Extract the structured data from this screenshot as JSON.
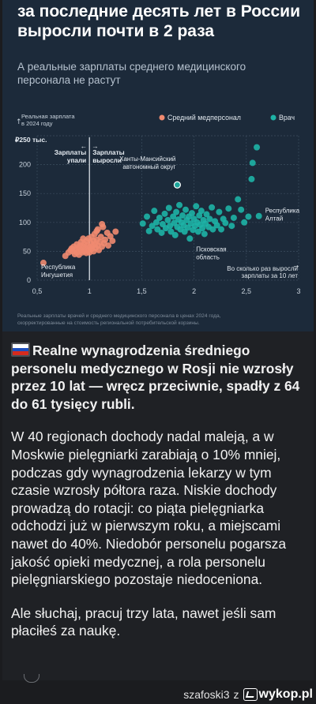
{
  "infographic": {
    "title_lines": [
      "за последние десять лет в России",
      "выросли почти в 2 раза"
    ],
    "subtitle_lines": [
      "А реальные зарплаты среднего медицинского",
      "персонала не растут"
    ],
    "caption_lines": [
      "Реальные зарплаты врачей и среднего медицинского персонала в ценах 2024 года,",
      "скорректированные на стоимость региональной потребительской корзины."
    ]
  },
  "chart_data": {
    "type": "scatter",
    "title": "",
    "ylabel_lines": [
      "Реальная зарплата",
      "в 2024 году"
    ],
    "y_unit": "₽250 тыс.",
    "xlabel_lines": [
      "Во сколько раз выросли",
      "зарплаты за 10 лет"
    ],
    "x_ticks": [
      "0,5",
      "1",
      "1,5",
      "2",
      "2,5",
      "3"
    ],
    "y_ticks": [
      "0",
      "50",
      "100",
      "150",
      "200"
    ],
    "xlim": [
      0.5,
      3
    ],
    "ylim": [
      0,
      250
    ],
    "legend_position": "top-right",
    "reference_line": {
      "x": 1,
      "left_label": [
        "Зарплаты",
        "упали"
      ],
      "right_label": [
        "Зарплаты",
        "выросли"
      ]
    },
    "series": [
      {
        "name": "Средний медперсонал",
        "color": "#f08a70",
        "points": [
          [
            0.56,
            30
          ],
          [
            0.77,
            42
          ],
          [
            0.8,
            48
          ],
          [
            0.82,
            52
          ],
          [
            0.83,
            55
          ],
          [
            0.84,
            50
          ],
          [
            0.85,
            58
          ],
          [
            0.86,
            45
          ],
          [
            0.87,
            53
          ],
          [
            0.88,
            62
          ],
          [
            0.88,
            48
          ],
          [
            0.9,
            56
          ],
          [
            0.9,
            44
          ],
          [
            0.91,
            60
          ],
          [
            0.92,
            52
          ],
          [
            0.92,
            66
          ],
          [
            0.93,
            48
          ],
          [
            0.94,
            58
          ],
          [
            0.95,
            63
          ],
          [
            0.95,
            50
          ],
          [
            0.96,
            55
          ],
          [
            0.97,
            68
          ],
          [
            0.97,
            47
          ],
          [
            0.98,
            60
          ],
          [
            0.99,
            52
          ],
          [
            0.99,
            72
          ],
          [
            1.0,
            57
          ],
          [
            1.0,
            48
          ],
          [
            1.01,
            65
          ],
          [
            1.02,
            54
          ],
          [
            1.02,
            75
          ],
          [
            1.03,
            59
          ],
          [
            1.04,
            50
          ],
          [
            1.04,
            68
          ],
          [
            1.05,
            62
          ],
          [
            1.05,
            80
          ],
          [
            1.06,
            56
          ],
          [
            1.07,
            70
          ],
          [
            1.08,
            60
          ],
          [
            1.08,
            88
          ],
          [
            1.09,
            52
          ],
          [
            1.1,
            66
          ],
          [
            1.11,
            75
          ],
          [
            1.12,
            58
          ],
          [
            1.13,
            92
          ],
          [
            1.14,
            64
          ],
          [
            1.15,
            70
          ],
          [
            1.17,
            82
          ],
          [
            1.18,
            60
          ],
          [
            1.2,
            76
          ],
          [
            1.22,
            68
          ],
          [
            1.25,
            84
          ],
          [
            1.12,
            97
          ],
          [
            1.07,
            85
          ],
          [
            0.94,
            72
          ]
        ]
      },
      {
        "name": "Врач",
        "color": "#1eb3a6",
        "points": [
          [
            1.51,
            98
          ],
          [
            1.55,
            110
          ],
          [
            1.57,
            85
          ],
          [
            1.6,
            94
          ],
          [
            1.62,
            120
          ],
          [
            1.64,
            100
          ],
          [
            1.65,
            88
          ],
          [
            1.67,
            108
          ],
          [
            1.69,
            82
          ],
          [
            1.7,
            97
          ],
          [
            1.72,
            115
          ],
          [
            1.73,
            90
          ],
          [
            1.75,
            104
          ],
          [
            1.76,
            125
          ],
          [
            1.77,
            94
          ],
          [
            1.78,
            84
          ],
          [
            1.8,
            110
          ],
          [
            1.81,
            99
          ],
          [
            1.82,
            78
          ],
          [
            1.83,
            118
          ],
          [
            1.84,
            92
          ],
          [
            1.85,
            105
          ],
          [
            1.86,
            130
          ],
          [
            1.87,
            88
          ],
          [
            1.88,
            100
          ],
          [
            1.89,
            112
          ],
          [
            1.9,
            95
          ],
          [
            1.91,
            84
          ],
          [
            1.92,
            122
          ],
          [
            1.93,
            104
          ],
          [
            1.94,
            91
          ],
          [
            1.95,
            110
          ],
          [
            1.96,
            72
          ],
          [
            1.97,
            98
          ],
          [
            1.98,
            116
          ],
          [
            1.99,
            87
          ],
          [
            2.0,
            106
          ],
          [
            2.01,
            94
          ],
          [
            2.02,
            128
          ],
          [
            2.03,
            100
          ],
          [
            2.04,
            84
          ],
          [
            2.05,
            112
          ],
          [
            2.06,
            96
          ],
          [
            2.07,
            120
          ],
          [
            2.08,
            90
          ],
          [
            2.09,
            104
          ],
          [
            2.1,
            80
          ],
          [
            2.11,
            98
          ],
          [
            2.12,
            114
          ],
          [
            2.14,
            92
          ],
          [
            2.15,
            106
          ],
          [
            2.17,
            126
          ],
          [
            2.18,
            88
          ],
          [
            2.2,
            102
          ],
          [
            2.22,
            95
          ],
          [
            2.24,
            118
          ],
          [
            2.26,
            88
          ],
          [
            2.28,
            106
          ],
          [
            2.3,
            99
          ],
          [
            2.33,
            124
          ],
          [
            2.36,
            94
          ],
          [
            2.38,
            108
          ],
          [
            2.42,
            140
          ],
          [
            2.45,
            122
          ],
          [
            2.48,
            100
          ],
          [
            2.52,
            110
          ],
          [
            2.55,
            175
          ],
          [
            2.6,
            230
          ],
          [
            2.56,
            203
          ],
          [
            2.62,
            111
          ],
          [
            1.84,
            165
          ]
        ]
      }
    ],
    "annotations": [
      {
        "lines": [
          "Ханты-Мансийский",
          "автономный округ"
        ],
        "x": 1.84,
        "y": 165
      },
      {
        "lines": [
          "Республика",
          "Алтай"
        ],
        "x": 2.62,
        "y": 111
      },
      {
        "lines": [
          "Псковская",
          "область"
        ],
        "x": 2.02,
        "y": 72
      },
      {
        "lines": [
          "Республика",
          "Ингушетия"
        ],
        "x": 0.56,
        "y": 30
      }
    ]
  },
  "post": {
    "lead": "Realne wynagrodzenia średniego personelu medycznego w Rosji nie wzrosły przez 10 lat — wręcz przeciwnie, spadły z 64 do 61 tysięcy rubli.",
    "para2": "W 40 regionach dochody nadal maleją, a w Moskwie pielęgniarki zarabiają o 10% mniej, podczas gdy wynagrodzenia lekarzy w tym czasie wzrosły półtora raza. Niskie dochody prowadzą do rotacji: co piąta pielęgniarka odchodzi już w pierwszym roku, a miejscami nawet do 40%. Niedobór personelu pogarsza jakość opieki medycznej, a rola personelu pielęgniarskiego pozostaje niedoceniona.",
    "para3": "Ale słuchaj, pracuj trzy lata, nawet jeśli sam płaciłeś za naukę."
  },
  "footer": {
    "author": "szafoski3",
    "separator": "z",
    "site": "wykop.pl",
    "logo_icon": "wykop-logo-icon"
  }
}
